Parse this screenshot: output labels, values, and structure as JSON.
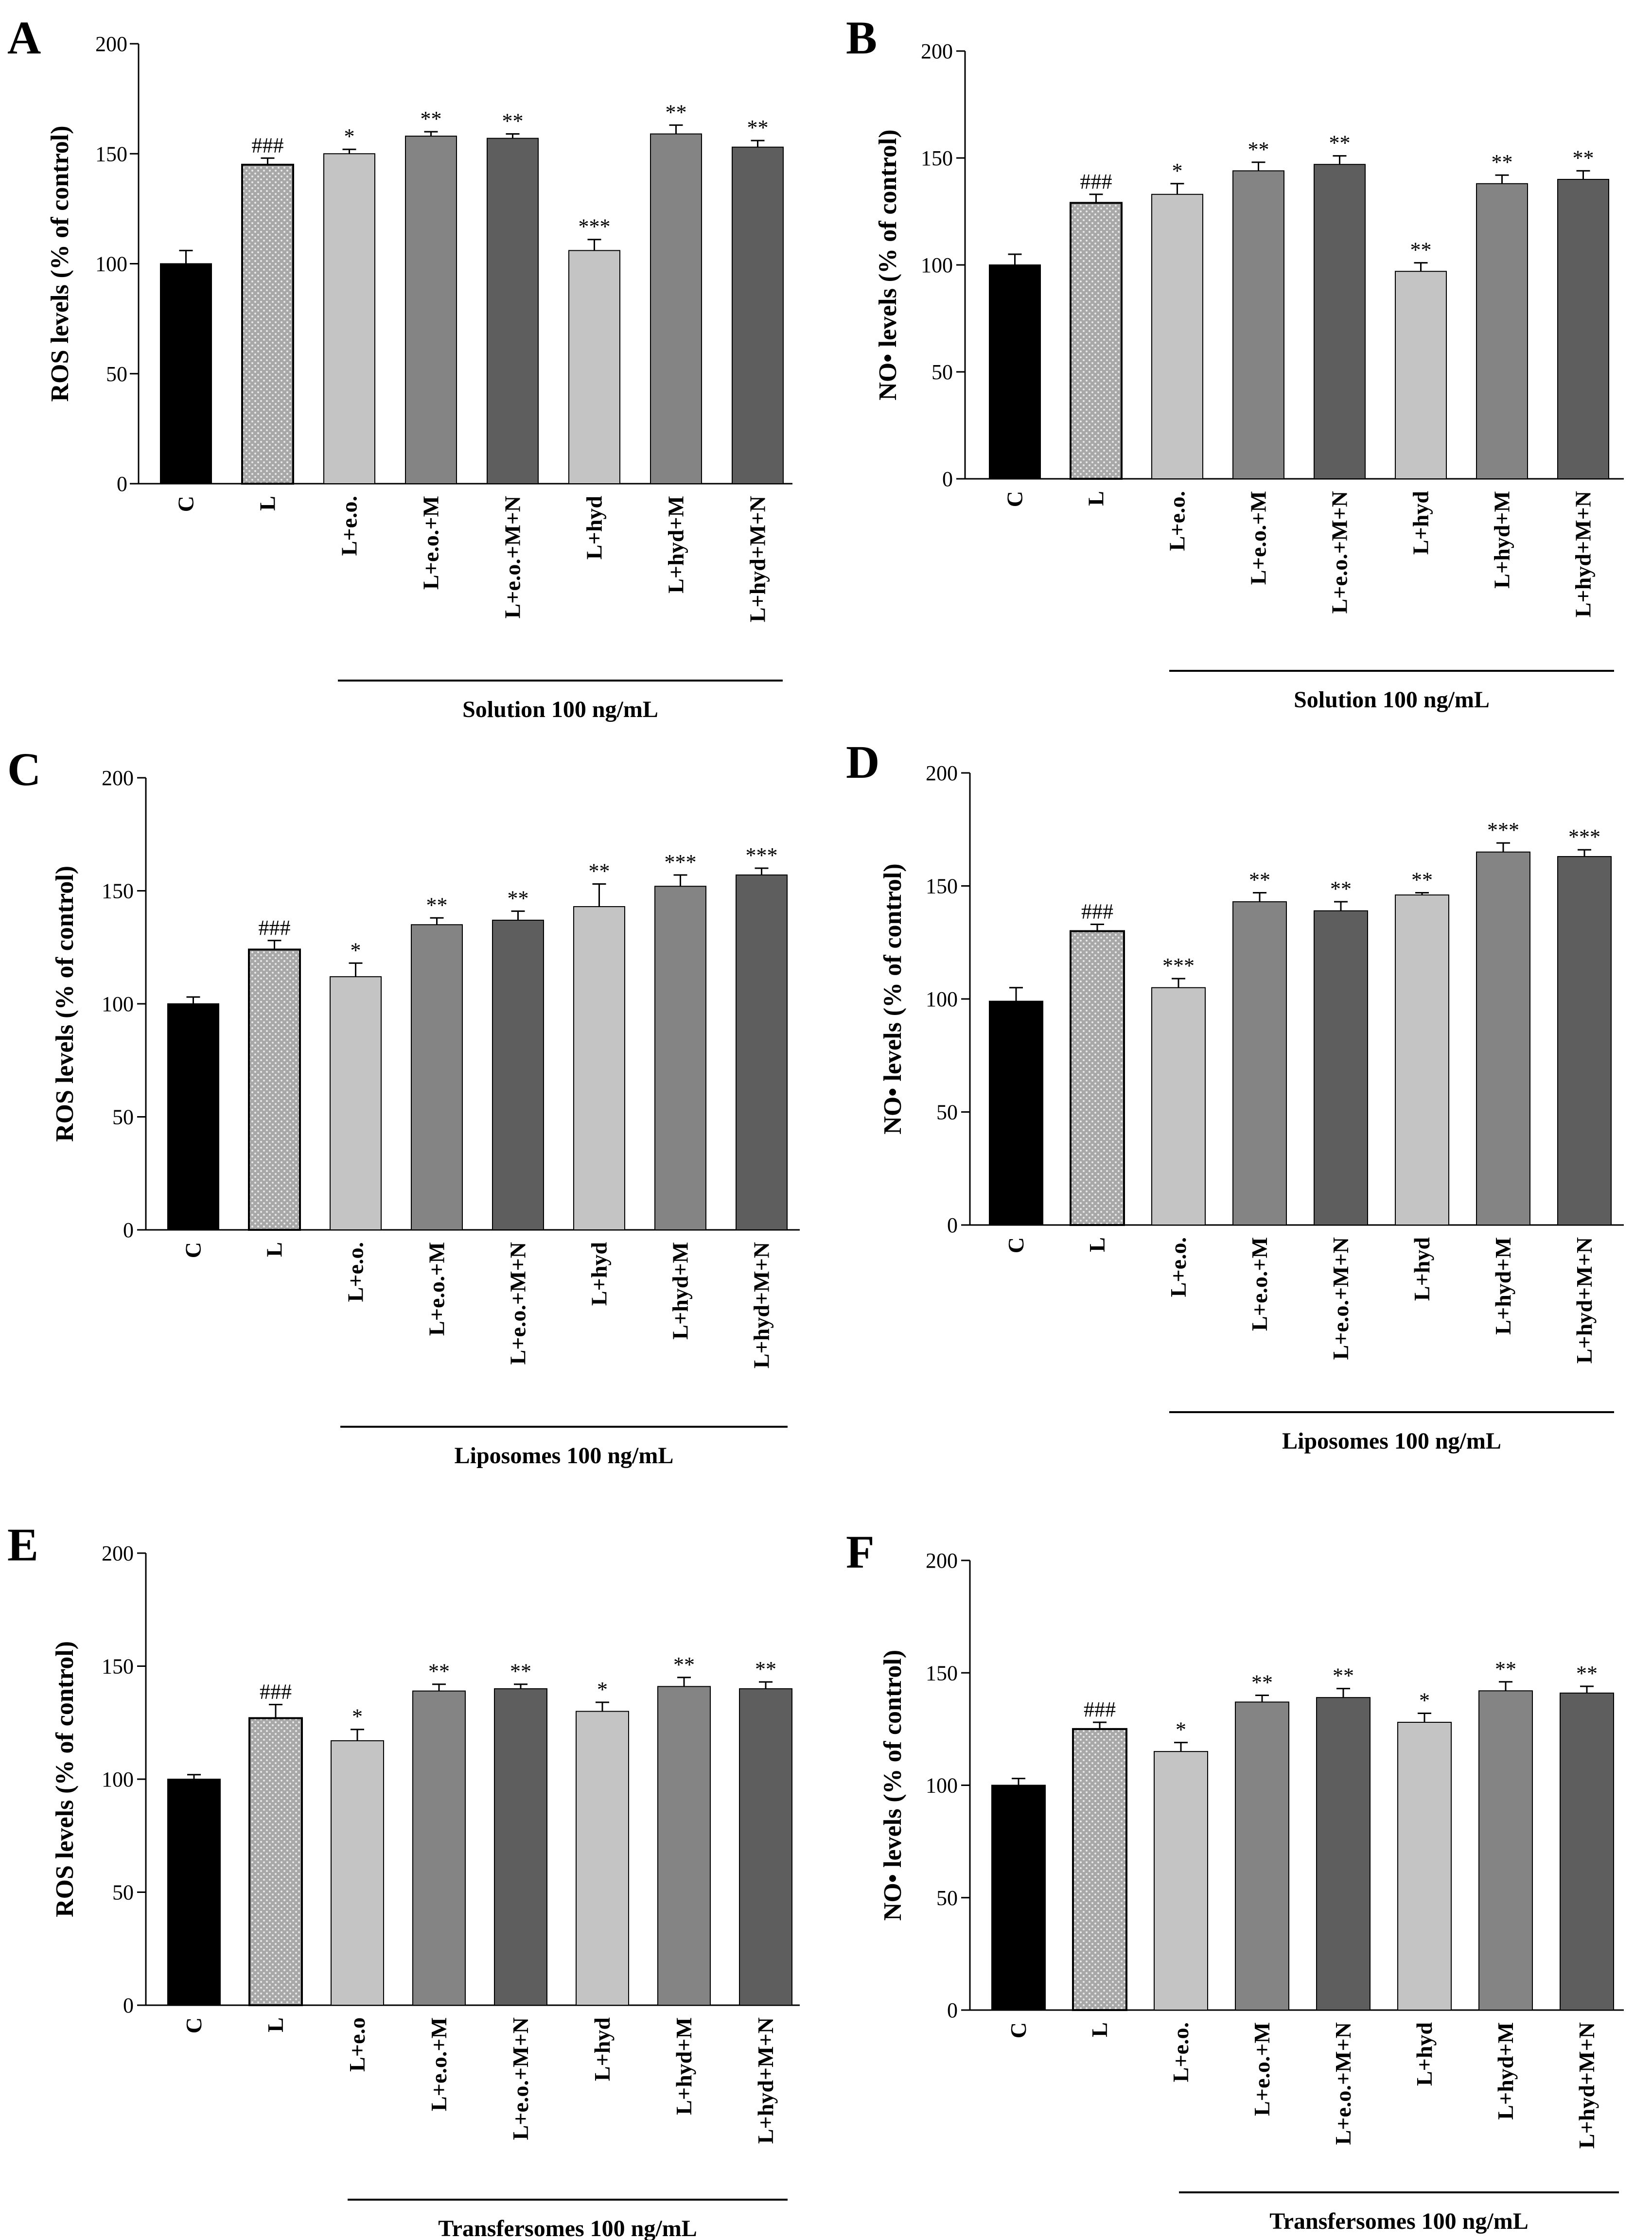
{
  "colors": {
    "control": "#000000",
    "L": "#9a9a9a",
    "light": "#c4c4c4",
    "medium": "#848484",
    "dark": "#5e5e5e",
    "axis": "#000000"
  },
  "chart_data": [
    {
      "panel": "A",
      "type": "bar",
      "ylabel": "ROS levels (% of control)",
      "ylim": [
        0,
        200
      ],
      "yticks": [
        "0",
        "50",
        "100",
        "150",
        "200"
      ],
      "categories": [
        "C",
        "L",
        "L+e.o.",
        "L+e.o.+M",
        "L+e.o.+M+N",
        "L+hyd",
        "L+hyd+M",
        "L+hyd+M+N"
      ],
      "values": [
        100,
        145,
        150,
        158,
        157,
        106,
        159,
        153
      ],
      "errors": [
        6,
        3,
        2,
        2,
        2,
        5,
        4,
        3
      ],
      "significance": [
        "",
        "###",
        "*",
        "**",
        "**",
        "***",
        "**",
        "**"
      ],
      "group_label": "Solution 100 ng/mL"
    },
    {
      "panel": "B",
      "type": "bar",
      "ylabel": "NO• levels (% of control)",
      "ylim": [
        0,
        200
      ],
      "yticks": [
        "0",
        "50",
        "100",
        "150",
        "200"
      ],
      "categories": [
        "C",
        "L",
        "L+e.o.",
        "L+e.o.+M",
        "L+e.o.+M+N",
        "L+hyd",
        "L+hyd+M",
        "L+hyd+M+N"
      ],
      "values": [
        100,
        129,
        133,
        144,
        147,
        97,
        138,
        140
      ],
      "errors": [
        5,
        4,
        5,
        4,
        4,
        4,
        4,
        4
      ],
      "significance": [
        "",
        "###",
        "*",
        "**",
        "**",
        "**",
        "**",
        "**"
      ],
      "group_label": "Solution 100 ng/mL"
    },
    {
      "panel": "C",
      "type": "bar",
      "ylabel": "ROS levels (% of control)",
      "ylim": [
        0,
        200
      ],
      "yticks": [
        "0",
        "50",
        "100",
        "150",
        "200"
      ],
      "categories": [
        "C",
        "L",
        "L+e.o.",
        "L+e.o.+M",
        "L+e.o.+M+N",
        "L+hyd",
        "L+hyd+M",
        "L+hyd+M+N"
      ],
      "values": [
        100,
        124,
        112,
        135,
        137,
        143,
        152,
        157
      ],
      "errors": [
        3,
        4,
        6,
        3,
        4,
        10,
        5,
        3
      ],
      "significance": [
        "",
        "###",
        "*",
        "**",
        "**",
        "**",
        "***",
        "***"
      ],
      "group_label": "Liposomes 100 ng/mL"
    },
    {
      "panel": "D",
      "type": "bar",
      "ylabel": "NO• levels (% of control)",
      "ylim": [
        0,
        200
      ],
      "yticks": [
        "0",
        "50",
        "100",
        "150",
        "200"
      ],
      "categories": [
        "C",
        "L",
        "L+e.o.",
        "L+e.o.+M",
        "L+e.o.+M+N",
        "L+hyd",
        "L+hyd+M",
        "L+hyd+M+N"
      ],
      "values": [
        99,
        130,
        105,
        143,
        139,
        146,
        165,
        163
      ],
      "errors": [
        6,
        3,
        4,
        4,
        4,
        1,
        4,
        3
      ],
      "significance": [
        "",
        "###",
        "***",
        "**",
        "**",
        "**",
        "***",
        "***"
      ],
      "group_label": "Liposomes 100 ng/mL"
    },
    {
      "panel": "E",
      "type": "bar",
      "ylabel": "ROS levels (% of control)",
      "ylim": [
        0,
        200
      ],
      "yticks": [
        "0",
        "50",
        "100",
        "150",
        "200"
      ],
      "categories": [
        "C",
        "L",
        "L+e.o",
        "L+e.o.+M",
        "L+e.o.+M+N",
        "L+hyd",
        "L+hyd+M",
        "L+hyd+M+N"
      ],
      "values": [
        100,
        127,
        117,
        139,
        140,
        130,
        141,
        140
      ],
      "errors": [
        2,
        6,
        5,
        3,
        2,
        4,
        4,
        3
      ],
      "significance": [
        "",
        "###",
        "*",
        "**",
        "**",
        "*",
        "**",
        "**"
      ],
      "group_label": "Transfersomes 100 ng/mL"
    },
    {
      "panel": "F",
      "type": "bar",
      "ylabel": "NO• levels (% of control)",
      "ylim": [
        0,
        200
      ],
      "yticks": [
        "0",
        "50",
        "100",
        "150",
        "200"
      ],
      "categories": [
        "C",
        "L",
        "L+e.o.",
        "L+e.o.+M",
        "L+e.o.+M+N",
        "L+hyd",
        "L+hyd+M",
        "L+hyd+M+N"
      ],
      "values": [
        100,
        125,
        115,
        137,
        139,
        128,
        142,
        141
      ],
      "errors": [
        3,
        3,
        4,
        3,
        4,
        4,
        4,
        3
      ],
      "significance": [
        "",
        "###",
        "*",
        "**",
        "**",
        "*",
        "**",
        "**"
      ],
      "group_label": "Transfersomes 100 ng/mL"
    }
  ]
}
